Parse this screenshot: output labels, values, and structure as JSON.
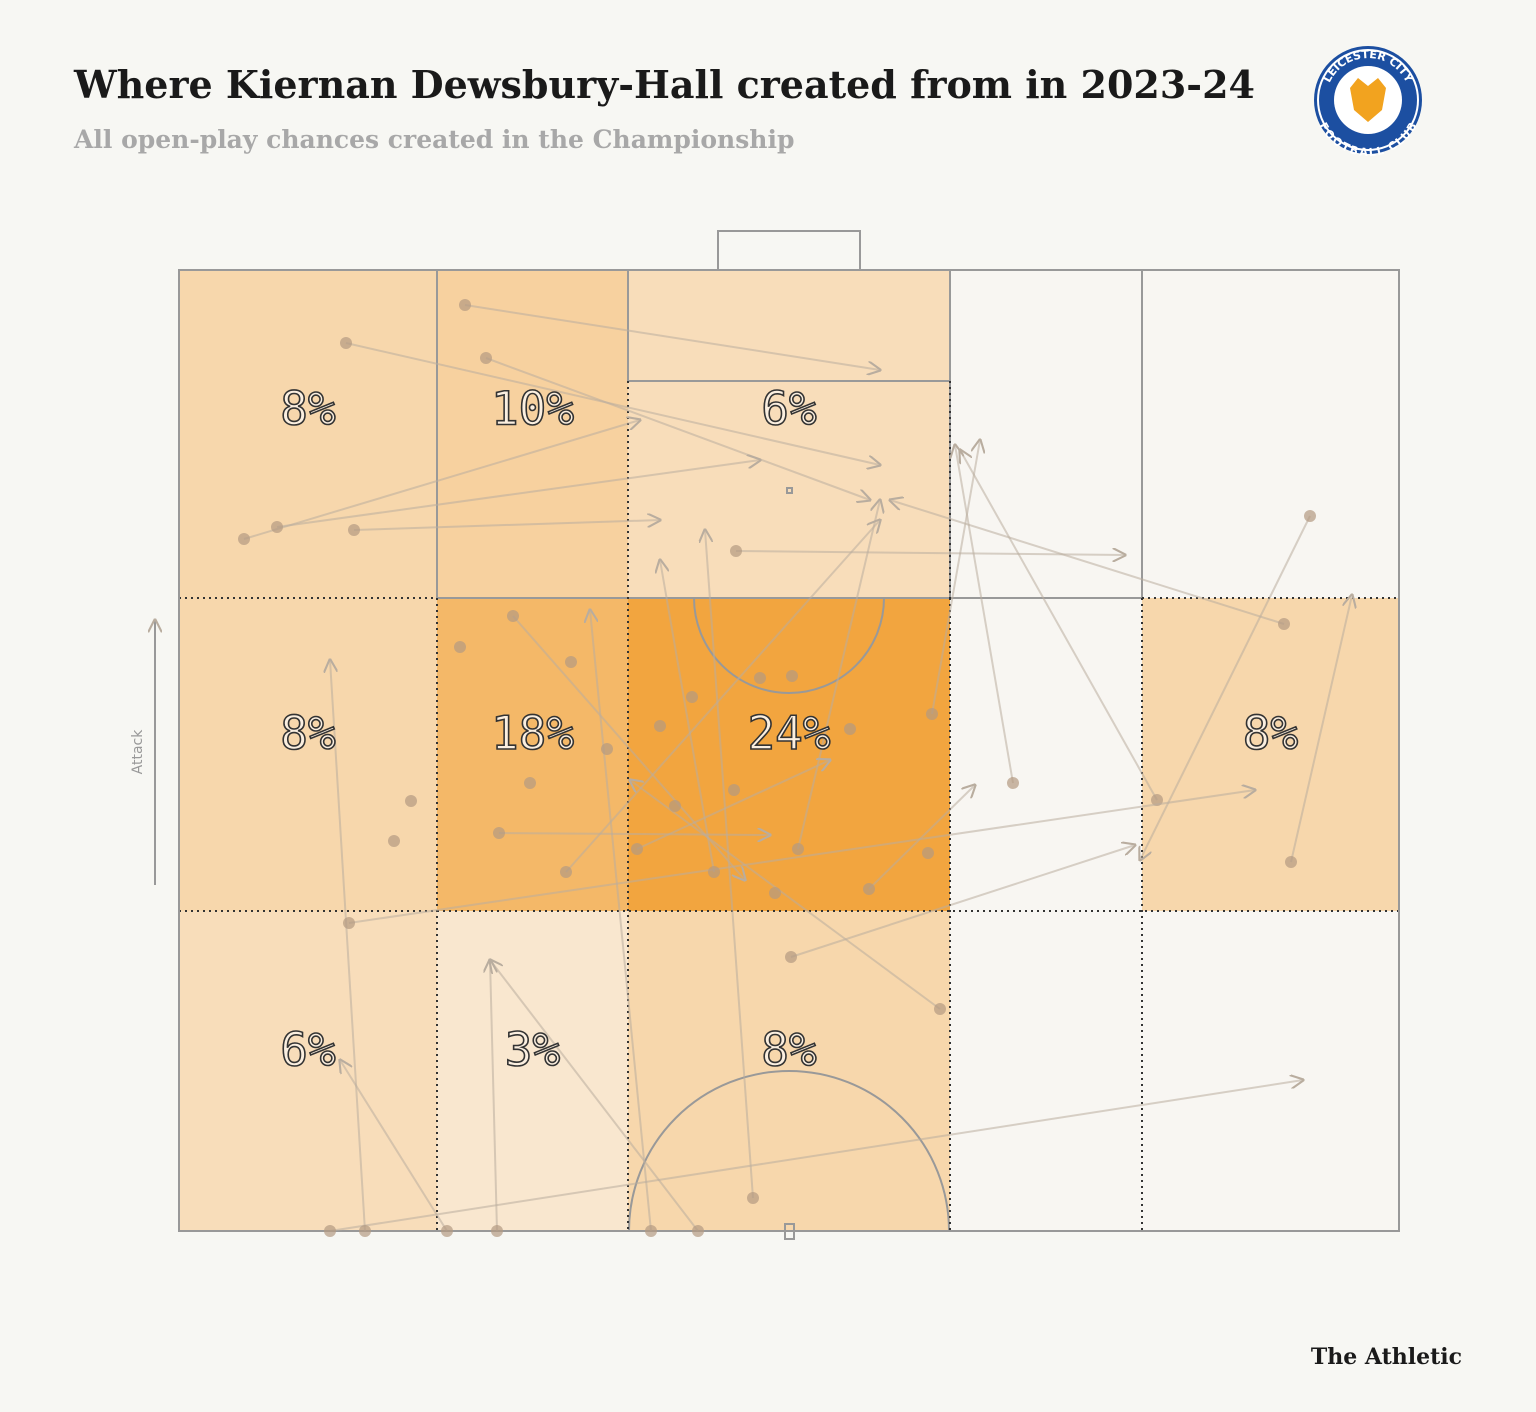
{
  "chart_data": {
    "type": "heatmap",
    "title": "Where Kiernan Dewsbury-Hall created from in 2023-24",
    "subtitle": "All open-play chances created in the Championship",
    "axis_label": "Attack",
    "rows": [
      [
        8,
        10,
        6,
        null,
        null
      ],
      [
        8,
        18,
        24,
        null,
        8
      ],
      [
        6,
        3,
        8,
        null,
        null
      ]
    ],
    "value_labels": [
      [
        "8%",
        "10%",
        "6%",
        null,
        null
      ],
      [
        "8%",
        "18%",
        "24%",
        null,
        "8%"
      ],
      [
        "6%",
        "3%",
        "8%",
        null,
        null
      ]
    ],
    "color_scale": [
      "#faf0e3",
      "#f2a53f"
    ]
  },
  "logo": {
    "top": "LEICESTER CITY",
    "bottom": "FOOTBALL CLUB"
  },
  "footer": "The Athletic"
}
